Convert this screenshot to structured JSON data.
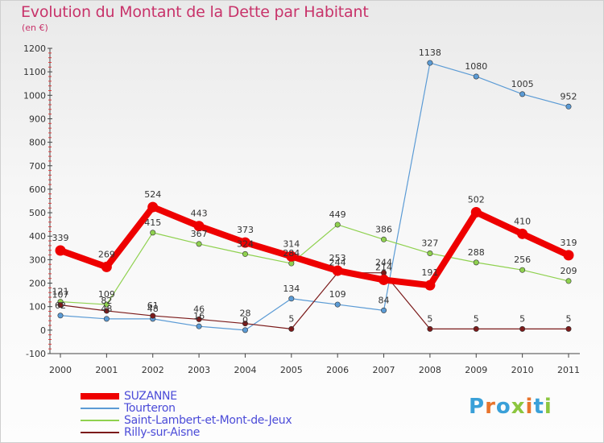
{
  "title": "Evolution du Montant de la Dette par Habitant",
  "subtitle": "(en €)",
  "logo": {
    "letters": [
      "P",
      "r",
      "o",
      "x",
      "i",
      "t",
      "i"
    ],
    "colors": [
      "#3aa0d8",
      "#e8742c",
      "#3aa0d8",
      "#8cc63f",
      "#e8742c",
      "#3aa0d8",
      "#8cc63f"
    ]
  },
  "chart_data": {
    "type": "line",
    "title": "Evolution du Montant de la Dette par Habitant",
    "subtitle": "(en €)",
    "xlabel": "",
    "ylabel": "",
    "x": [
      "2000",
      "2001",
      "2002",
      "2003",
      "2004",
      "2005",
      "2006",
      "2007",
      "2008",
      "2009",
      "2010",
      "2011"
    ],
    "ylim": [
      -100,
      1200
    ],
    "yticks": [
      -100,
      0,
      100,
      200,
      300,
      400,
      500,
      600,
      700,
      800,
      900,
      1000,
      1100,
      1200
    ],
    "grid": false,
    "legend_position": "bottom-left",
    "series": [
      {
        "name": "SUZANNE",
        "color": "#ee0000",
        "values": [
          339,
          269,
          524,
          443,
          373,
          314,
          253,
          214,
          191,
          502,
          410,
          319
        ],
        "labels": [
          "339",
          "269",
          "524",
          "443",
          "373",
          "314",
          "253",
          "214",
          "191",
          "502",
          "410",
          "319"
        ]
      },
      {
        "name": "Tourteron",
        "color": "#5b9bd5",
        "values": [
          62,
          48,
          48,
          16,
          0,
          134,
          109,
          84,
          1138,
          1080,
          1005,
          952
        ],
        "labels": [
          "62",
          "48",
          "48",
          "16",
          "0",
          "134",
          "109",
          "84",
          "1138",
          "1080",
          "1005",
          "952"
        ]
      },
      {
        "name": "Saint-Lambert-et-Mont-de-Jeux",
        "color": "#8fd14f",
        "values": [
          121,
          109,
          415,
          367,
          324,
          284,
          449,
          386,
          327,
          288,
          256,
          209
        ],
        "labels": [
          "121",
          "109",
          "415",
          "367",
          "324",
          "284",
          "449",
          "386",
          "327",
          "288",
          "256",
          "209"
        ]
      },
      {
        "name": "Rilly-sur-Aisne",
        "color": "#7b1a1a",
        "values": [
          107,
          82,
          61,
          46,
          28,
          5,
          244,
          244,
          5,
          5,
          5,
          5
        ],
        "labels": [
          "107",
          "82",
          "61",
          "46",
          "28",
          "5",
          "244",
          "244",
          "5",
          "5",
          "5",
          "5"
        ]
      }
    ]
  }
}
